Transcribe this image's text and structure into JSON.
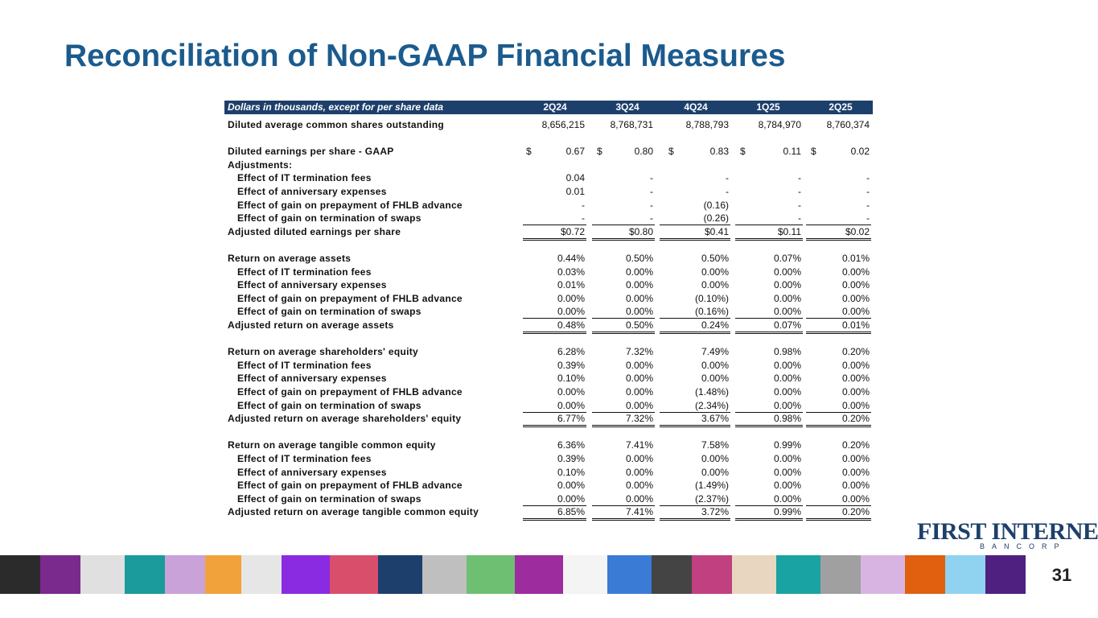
{
  "header": {
    "title": "Reconciliation of Non-GAAP Financial Measures"
  },
  "table": {
    "caption": "Dollars in thousands, except for per share data",
    "columns": [
      "2Q24",
      "3Q24",
      "4Q24",
      "1Q25",
      "2Q25"
    ],
    "sections": [
      {
        "rows": [
          {
            "label": "Diluted average common shares outstanding",
            "values": [
              "8,656,215",
              "8,768,731",
              "8,788,793",
              "8,784,970",
              "8,760,374"
            ]
          }
        ]
      },
      {
        "rows": [
          {
            "label": "Diluted earnings per share - GAAP",
            "prefix": "$",
            "values": [
              "0.67",
              "0.80",
              "0.83",
              "0.11",
              "0.02"
            ]
          },
          {
            "label": "Adjustments:"
          },
          {
            "label": "Effect of IT termination fees",
            "values": [
              "0.04",
              "-",
              "-",
              "-",
              "-"
            ]
          },
          {
            "label": "Effect of anniversary expenses",
            "values": [
              "0.01",
              "-",
              "-",
              "-",
              "-"
            ]
          },
          {
            "label": "Effect of gain on prepayment of FHLB advance",
            "values": [
              "-",
              "-",
              "(0.16)",
              "-",
              "-"
            ]
          },
          {
            "label": "Effect of gain on termination of swaps",
            "values": [
              "-",
              "-",
              "(0.26)",
              "-",
              "-"
            ]
          },
          {
            "label": "Adjusted diluted earnings per share",
            "values": [
              "$0.72",
              "$0.80",
              "$0.41",
              "$0.11",
              "$0.02"
            ]
          }
        ]
      },
      {
        "rows": [
          {
            "label": "Return on average assets",
            "values": [
              "0.44%",
              "0.50%",
              "0.50%",
              "0.07%",
              "0.01%"
            ]
          },
          {
            "label": "Effect of IT termination fees",
            "values": [
              "0.03%",
              "0.00%",
              "0.00%",
              "0.00%",
              "0.00%"
            ]
          },
          {
            "label": "Effect of anniversary expenses",
            "values": [
              "0.01%",
              "0.00%",
              "0.00%",
              "0.00%",
              "0.00%"
            ]
          },
          {
            "label": "Effect of gain on prepayment of FHLB advance",
            "values": [
              "0.00%",
              "0.00%",
              "(0.10%)",
              "0.00%",
              "0.00%"
            ]
          },
          {
            "label": "Effect of gain on termination of swaps",
            "values": [
              "0.00%",
              "0.00%",
              "(0.16%)",
              "0.00%",
              "0.00%"
            ]
          },
          {
            "label": "Adjusted return on average assets",
            "values": [
              "0.48%",
              "0.50%",
              "0.24%",
              "0.07%",
              "0.01%"
            ]
          }
        ]
      },
      {
        "rows": [
          {
            "label": "Return on average shareholders' equity",
            "values": [
              "6.28%",
              "7.32%",
              "7.49%",
              "0.98%",
              "0.20%"
            ]
          },
          {
            "label": "Effect of IT termination fees",
            "values": [
              "0.39%",
              "0.00%",
              "0.00%",
              "0.00%",
              "0.00%"
            ]
          },
          {
            "label": "Effect of anniversary expenses",
            "values": [
              "0.10%",
              "0.00%",
              "0.00%",
              "0.00%",
              "0.00%"
            ]
          },
          {
            "label": "Effect of gain on prepayment of FHLB advance",
            "values": [
              "0.00%",
              "0.00%",
              "(1.48%)",
              "0.00%",
              "0.00%"
            ]
          },
          {
            "label": "Effect of gain on termination of swaps",
            "values": [
              "0.00%",
              "0.00%",
              "(2.34%)",
              "0.00%",
              "0.00%"
            ]
          },
          {
            "label": "Adjusted return on average shareholders' equity",
            "values": [
              "6.77%",
              "7.32%",
              "3.67%",
              "0.98%",
              "0.20%"
            ]
          }
        ]
      },
      {
        "rows": [
          {
            "label": "Return on average tangible common equity",
            "values": [
              "6.36%",
              "7.41%",
              "7.58%",
              "0.99%",
              "0.20%"
            ]
          },
          {
            "label": "Effect of IT termination fees",
            "values": [
              "0.39%",
              "0.00%",
              "0.00%",
              "0.00%",
              "0.00%"
            ]
          },
          {
            "label": "Effect of anniversary expenses",
            "values": [
              "0.10%",
              "0.00%",
              "0.00%",
              "0.00%",
              "0.00%"
            ]
          },
          {
            "label": "Effect of gain on prepayment of FHLB advance",
            "values": [
              "0.00%",
              "0.00%",
              "(1.49%)",
              "0.00%",
              "0.00%"
            ]
          },
          {
            "label": "Effect of gain on termination of swaps",
            "values": [
              "0.00%",
              "0.00%",
              "(2.37%)",
              "0.00%",
              "0.00%"
            ]
          },
          {
            "label": "Adjusted return on average tangible common equity",
            "values": [
              "6.85%",
              "7.41%",
              "3.72%",
              "0.99%",
              "0.20%"
            ]
          }
        ]
      }
    ]
  },
  "footer": {
    "logo_name": "FIRST INTERNET",
    "logo_sub": "BANCORP",
    "page_number": "31"
  }
}
